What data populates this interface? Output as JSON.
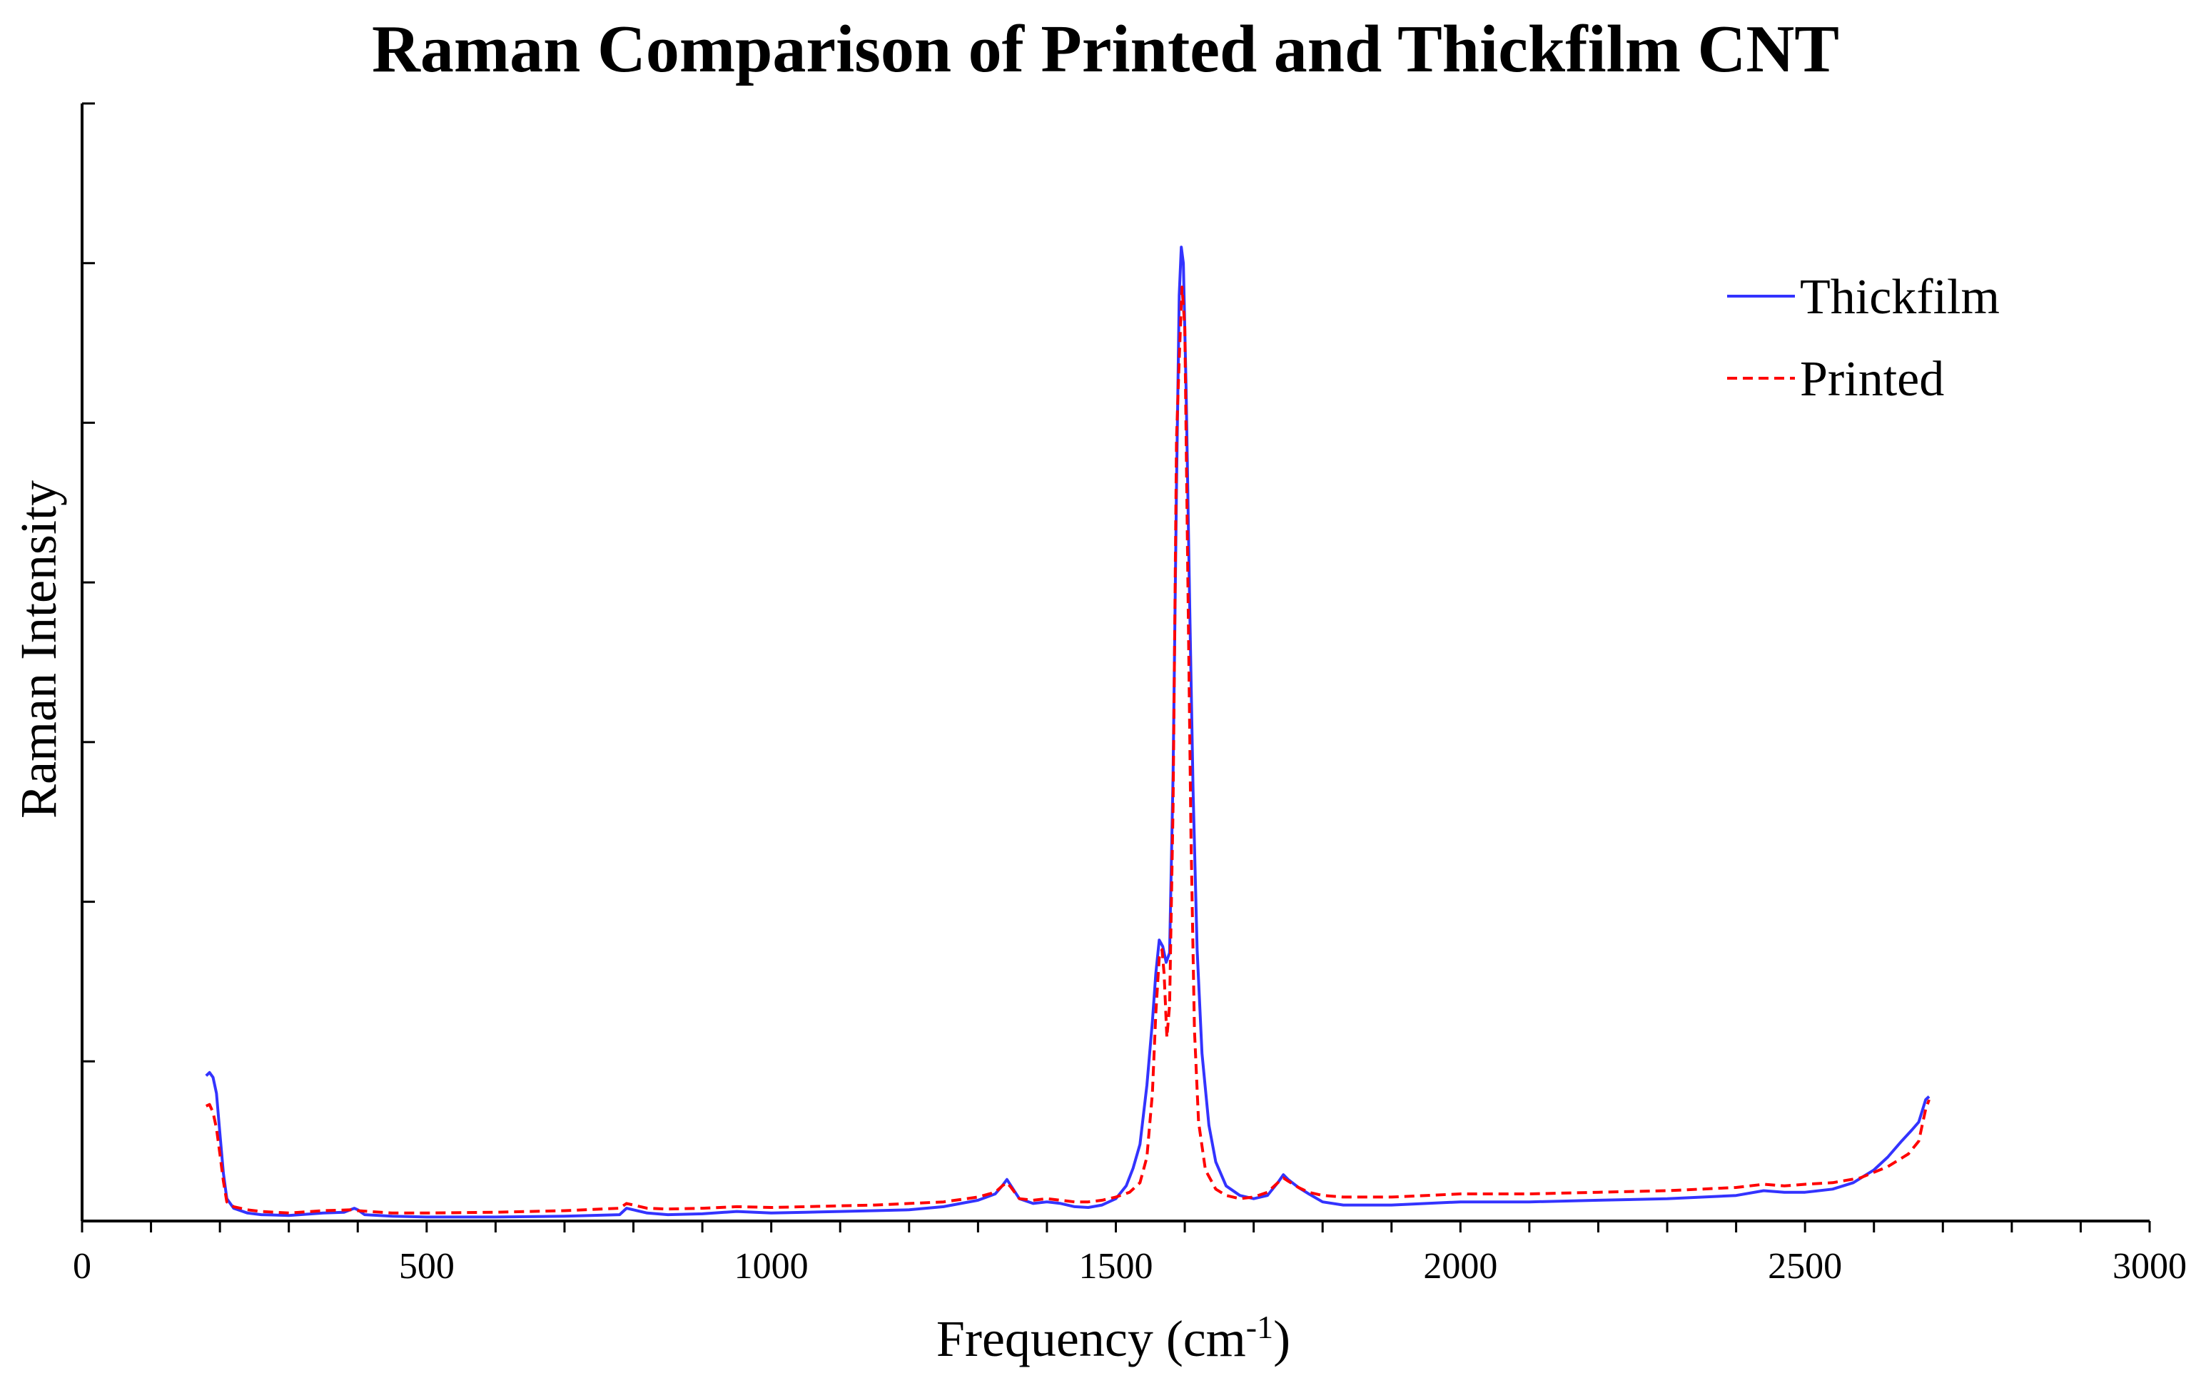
{
  "chart_data": {
    "type": "line",
    "title": "Raman Comparison of Printed and Thickfilm CNT",
    "xlabel_main": "Frequency (cm",
    "xlabel_sup": "-1",
    "xlabel_tail": ")",
    "ylabel": "Raman Intensity",
    "xlim": [
      0,
      3000
    ],
    "ylim": [
      0,
      7
    ],
    "x_ticks": [
      0,
      500,
      1000,
      1500,
      2000,
      2500,
      3000
    ],
    "x_minor_step": 100,
    "y_ticks": [
      0,
      1,
      2,
      3,
      4,
      5,
      6,
      7
    ],
    "y_tick_labels_shown": false,
    "grid": false,
    "legend_position": "top-right",
    "series": [
      {
        "name": "Thickfilm",
        "color": "#3333ff",
        "dash": "solid",
        "points": [
          [
            180,
            0.91
          ],
          [
            185,
            0.93
          ],
          [
            190,
            0.9
          ],
          [
            195,
            0.8
          ],
          [
            200,
            0.55
          ],
          [
            205,
            0.3
          ],
          [
            210,
            0.14
          ],
          [
            220,
            0.08
          ],
          [
            240,
            0.05
          ],
          [
            260,
            0.04
          ],
          [
            300,
            0.035
          ],
          [
            350,
            0.05
          ],
          [
            380,
            0.055
          ],
          [
            395,
            0.08
          ],
          [
            400,
            0.07
          ],
          [
            410,
            0.04
          ],
          [
            450,
            0.03
          ],
          [
            500,
            0.025
          ],
          [
            600,
            0.025
          ],
          [
            700,
            0.03
          ],
          [
            780,
            0.04
          ],
          [
            790,
            0.08
          ],
          [
            800,
            0.07
          ],
          [
            820,
            0.05
          ],
          [
            850,
            0.04
          ],
          [
            900,
            0.045
          ],
          [
            950,
            0.06
          ],
          [
            1000,
            0.05
          ],
          [
            1050,
            0.055
          ],
          [
            1100,
            0.06
          ],
          [
            1150,
            0.065
          ],
          [
            1200,
            0.07
          ],
          [
            1250,
            0.09
          ],
          [
            1300,
            0.13
          ],
          [
            1325,
            0.17
          ],
          [
            1335,
            0.22
          ],
          [
            1342,
            0.26
          ],
          [
            1348,
            0.22
          ],
          [
            1360,
            0.14
          ],
          [
            1380,
            0.11
          ],
          [
            1400,
            0.12
          ],
          [
            1420,
            0.11
          ],
          [
            1440,
            0.09
          ],
          [
            1460,
            0.085
          ],
          [
            1480,
            0.1
          ],
          [
            1500,
            0.14
          ],
          [
            1515,
            0.22
          ],
          [
            1525,
            0.33
          ],
          [
            1535,
            0.48
          ],
          [
            1545,
            0.85
          ],
          [
            1553,
            1.25
          ],
          [
            1558,
            1.55
          ],
          [
            1563,
            1.76
          ],
          [
            1568,
            1.72
          ],
          [
            1573,
            1.62
          ],
          [
            1578,
            1.68
          ],
          [
            1583,
            2.8
          ],
          [
            1588,
            4.6
          ],
          [
            1592,
            5.8
          ],
          [
            1595,
            6.1
          ],
          [
            1598,
            6.0
          ],
          [
            1602,
            5.2
          ],
          [
            1607,
            3.9
          ],
          [
            1612,
            2.7
          ],
          [
            1618,
            1.7
          ],
          [
            1625,
            1.05
          ],
          [
            1635,
            0.6
          ],
          [
            1645,
            0.37
          ],
          [
            1660,
            0.22
          ],
          [
            1680,
            0.16
          ],
          [
            1700,
            0.14
          ],
          [
            1720,
            0.16
          ],
          [
            1735,
            0.24
          ],
          [
            1743,
            0.29
          ],
          [
            1750,
            0.26
          ],
          [
            1765,
            0.21
          ],
          [
            1780,
            0.17
          ],
          [
            1800,
            0.12
          ],
          [
            1830,
            0.1
          ],
          [
            1900,
            0.1
          ],
          [
            2000,
            0.12
          ],
          [
            2100,
            0.12
          ],
          [
            2200,
            0.13
          ],
          [
            2300,
            0.14
          ],
          [
            2400,
            0.16
          ],
          [
            2440,
            0.19
          ],
          [
            2470,
            0.18
          ],
          [
            2500,
            0.18
          ],
          [
            2540,
            0.2
          ],
          [
            2570,
            0.24
          ],
          [
            2600,
            0.32
          ],
          [
            2620,
            0.4
          ],
          [
            2640,
            0.5
          ],
          [
            2655,
            0.57
          ],
          [
            2665,
            0.62
          ],
          [
            2675,
            0.76
          ],
          [
            2680,
            0.78
          ]
        ]
      },
      {
        "name": "Printed",
        "color": "#ff0000",
        "dash": "dashed",
        "points": [
          [
            180,
            0.72
          ],
          [
            185,
            0.73
          ],
          [
            190,
            0.68
          ],
          [
            195,
            0.58
          ],
          [
            200,
            0.42
          ],
          [
            205,
            0.25
          ],
          [
            210,
            0.12
          ],
          [
            220,
            0.09
          ],
          [
            240,
            0.07
          ],
          [
            260,
            0.06
          ],
          [
            300,
            0.05
          ],
          [
            350,
            0.065
          ],
          [
            390,
            0.07
          ],
          [
            400,
            0.065
          ],
          [
            450,
            0.05
          ],
          [
            500,
            0.05
          ],
          [
            600,
            0.055
          ],
          [
            700,
            0.065
          ],
          [
            780,
            0.08
          ],
          [
            790,
            0.11
          ],
          [
            800,
            0.1
          ],
          [
            820,
            0.08
          ],
          [
            850,
            0.075
          ],
          [
            900,
            0.08
          ],
          [
            950,
            0.09
          ],
          [
            1000,
            0.085
          ],
          [
            1050,
            0.09
          ],
          [
            1100,
            0.095
          ],
          [
            1150,
            0.1
          ],
          [
            1200,
            0.11
          ],
          [
            1250,
            0.12
          ],
          [
            1300,
            0.15
          ],
          [
            1325,
            0.18
          ],
          [
            1335,
            0.22
          ],
          [
            1342,
            0.24
          ],
          [
            1348,
            0.21
          ],
          [
            1360,
            0.14
          ],
          [
            1380,
            0.13
          ],
          [
            1400,
            0.14
          ],
          [
            1420,
            0.13
          ],
          [
            1440,
            0.12
          ],
          [
            1460,
            0.12
          ],
          [
            1480,
            0.13
          ],
          [
            1500,
            0.15
          ],
          [
            1520,
            0.18
          ],
          [
            1535,
            0.24
          ],
          [
            1545,
            0.4
          ],
          [
            1553,
            0.8
          ],
          [
            1558,
            1.3
          ],
          [
            1563,
            1.65
          ],
          [
            1567,
            1.7
          ],
          [
            1570,
            1.55
          ],
          [
            1574,
            1.15
          ],
          [
            1578,
            1.35
          ],
          [
            1583,
            2.6
          ],
          [
            1588,
            4.9
          ],
          [
            1592,
            5.4
          ],
          [
            1596,
            5.85
          ],
          [
            1600,
            5.6
          ],
          [
            1604,
            4.2
          ],
          [
            1609,
            2.4
          ],
          [
            1614,
            1.2
          ],
          [
            1620,
            0.62
          ],
          [
            1630,
            0.32
          ],
          [
            1645,
            0.2
          ],
          [
            1660,
            0.16
          ],
          [
            1680,
            0.14
          ],
          [
            1700,
            0.15
          ],
          [
            1720,
            0.18
          ],
          [
            1735,
            0.24
          ],
          [
            1743,
            0.27
          ],
          [
            1750,
            0.25
          ],
          [
            1765,
            0.21
          ],
          [
            1780,
            0.18
          ],
          [
            1800,
            0.16
          ],
          [
            1830,
            0.15
          ],
          [
            1900,
            0.15
          ],
          [
            2000,
            0.17
          ],
          [
            2100,
            0.17
          ],
          [
            2200,
            0.18
          ],
          [
            2300,
            0.19
          ],
          [
            2400,
            0.21
          ],
          [
            2440,
            0.23
          ],
          [
            2470,
            0.22
          ],
          [
            2500,
            0.23
          ],
          [
            2540,
            0.24
          ],
          [
            2580,
            0.27
          ],
          [
            2620,
            0.34
          ],
          [
            2650,
            0.42
          ],
          [
            2665,
            0.5
          ],
          [
            2675,
            0.7
          ],
          [
            2680,
            0.76
          ]
        ]
      }
    ]
  }
}
